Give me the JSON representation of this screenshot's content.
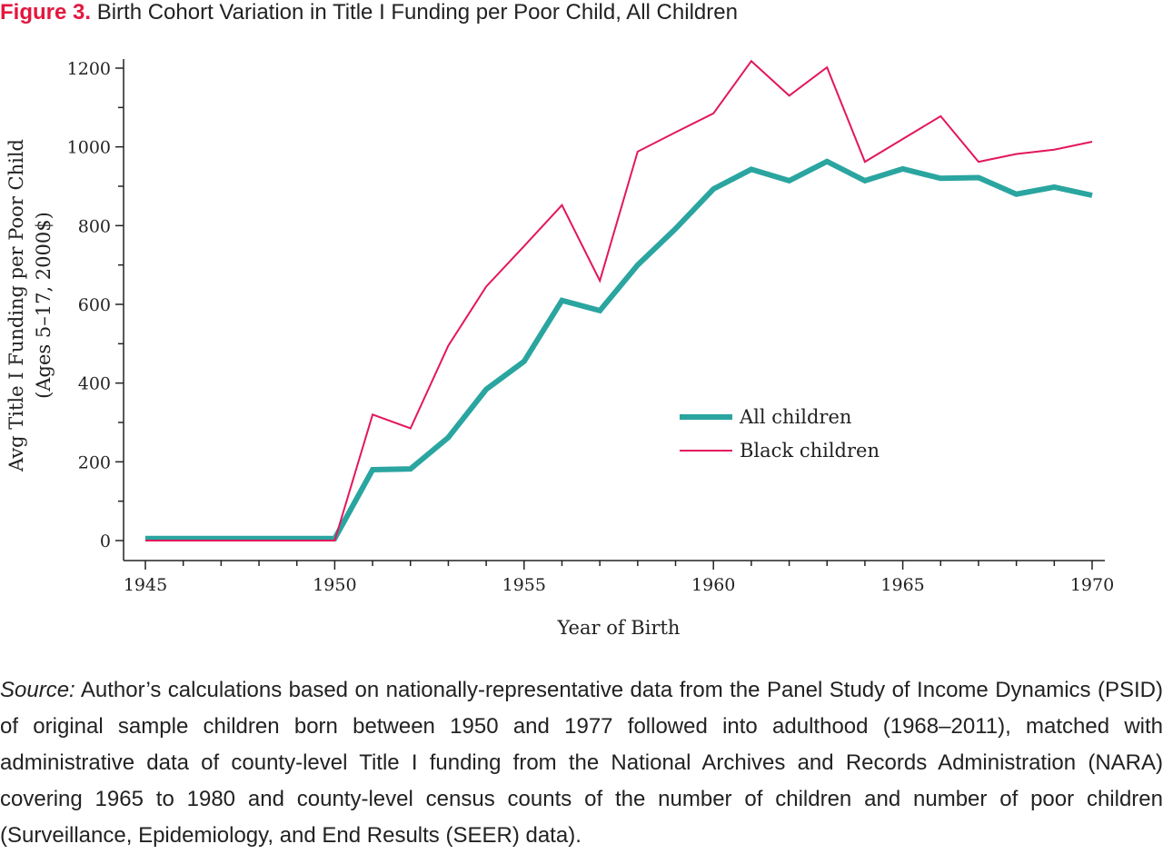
{
  "figure": {
    "label": "Figure 3.",
    "title": "Birth Cohort Variation in Title I Funding per Poor Child, All Children"
  },
  "source": {
    "label": "Source:",
    "text": "Author’s calculations based on nationally-representative data from the Panel Study of Income Dynamics (PSID) of original sample children born between 1950 and 1977 followed into adulthood (1968–2011), matched with administrative data of county-level Title I funding from the National Archives and Records Administration (NARA) covering 1965 to 1980 and county-level census counts of the num­ber of children and number of poor children (Surveillance, Epidemiology, and End Results (SEER) data)."
  },
  "colors": {
    "accent": "#e3173e",
    "all_children": "#2aa5a0",
    "black_children": "#e3175a",
    "axis": "#222222"
  },
  "chart_data": {
    "type": "line",
    "xlabel": "Year of Birth",
    "ylabel": [
      "Avg Title I Funding per Poor Child",
      "(Ages 5–17, 2000$)"
    ],
    "xlim": [
      1945,
      1970
    ],
    "ylim": [
      0,
      1200
    ],
    "x_ticks": [
      1945,
      1950,
      1955,
      1960,
      1965,
      1970
    ],
    "x_minor_step": 1,
    "y_ticks": [
      0,
      200,
      400,
      600,
      800,
      1000,
      1200
    ],
    "y_minor_step": 100,
    "grid": false,
    "legend_position": "center-right",
    "x": [
      1945,
      1946,
      1947,
      1948,
      1949,
      1950,
      1951,
      1952,
      1953,
      1954,
      1955,
      1956,
      1957,
      1958,
      1959,
      1960,
      1961,
      1962,
      1963,
      1964,
      1965,
      1966,
      1967,
      1968,
      1969,
      1970
    ],
    "series": [
      {
        "name": "All children",
        "color": "#2aa5a0",
        "width": 6,
        "values": [
          5,
          5,
          5,
          5,
          5,
          5,
          180,
          182,
          262,
          384,
          455,
          610,
          584,
          700,
          792,
          893,
          943,
          914,
          963,
          914,
          944,
          920,
          922,
          880,
          898,
          877
        ]
      },
      {
        "name": "Black children",
        "color": "#e3175a",
        "width": 2,
        "values": [
          0,
          0,
          0,
          0,
          0,
          0,
          320,
          285,
          495,
          645,
          748,
          852,
          660,
          988,
          1037,
          1085,
          1218,
          1130,
          1202,
          962,
          1020,
          1078,
          962,
          982,
          993,
          1013
        ]
      }
    ]
  }
}
